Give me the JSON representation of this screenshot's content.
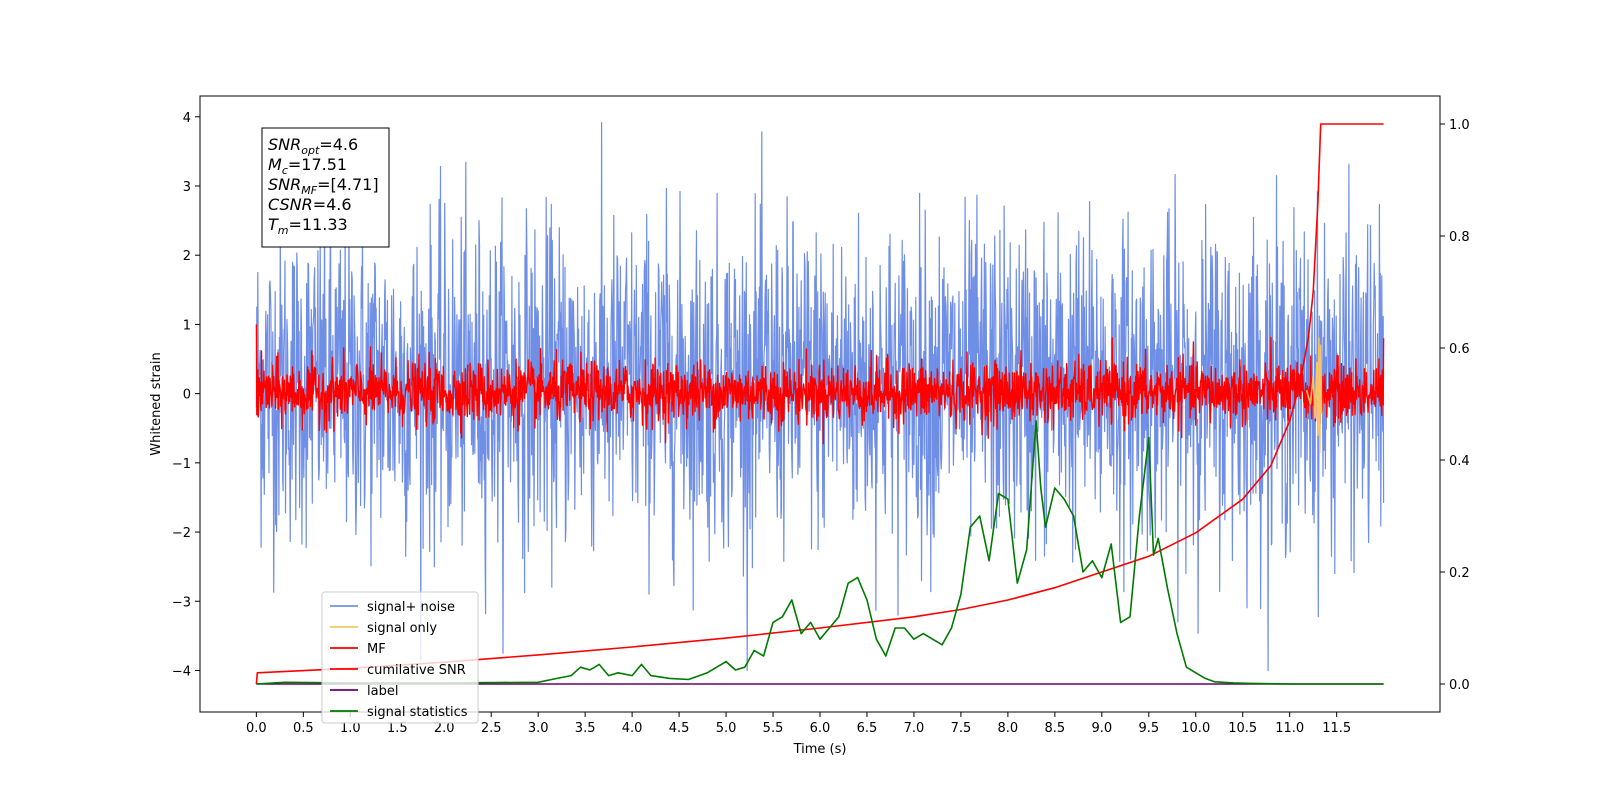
{
  "chart_data": {
    "type": "line",
    "title": "",
    "xlabel": "Time (s)",
    "ylabel": "Whitened strain",
    "xlim": [
      -0.6,
      12.6
    ],
    "ylim": [
      -4.6,
      4.3
    ],
    "y2lim": [
      -0.05,
      1.05
    ],
    "grid": false,
    "legend_position": "bottom-left",
    "x_ticks": [
      "0.0",
      "0.5",
      "1.0",
      "1.5",
      "2.0",
      "2.5",
      "3.0",
      "3.5",
      "4.0",
      "4.5",
      "5.0",
      "5.5",
      "6.0",
      "6.5",
      "7.0",
      "7.5",
      "8.0",
      "8.5",
      "9.0",
      "9.5",
      "10.0",
      "10.5",
      "11.0",
      "11.5"
    ],
    "y_ticks": [
      "4",
      "3",
      "2",
      "1",
      "0",
      "−1",
      "−2",
      "−3",
      "−4"
    ],
    "y2_ticks": [
      "1.0",
      "0.8",
      "0.6",
      "0.4",
      "0.2",
      "0.0"
    ],
    "annotation": {
      "lines": [
        {
          "sym": "SNR",
          "sub": "opt",
          "value": "=4.6"
        },
        {
          "sym": "M",
          "sub": "c",
          "value": "=17.51"
        },
        {
          "sym": "SNR",
          "sub": "MF",
          "value": "=[4.71]"
        },
        {
          "sym": "CSNR",
          "sub": "",
          "value": "=4.6"
        },
        {
          "sym": "T",
          "sub": "m",
          "value": "=11.33"
        }
      ]
    },
    "legend": [
      {
        "label": "signal+ noise",
        "color": "#6f8ee6"
      },
      {
        "label": "signal only",
        "color": "#f6c46a"
      },
      {
        "label": "MF",
        "color": "#ff0000"
      },
      {
        "label": "cumilative SNR",
        "color": "#ff0000"
      },
      {
        "label": "label",
        "color": "#6b006b"
      },
      {
        "label": "signal statistics",
        "color": "#007a00"
      }
    ],
    "series": [
      {
        "name": "signal+ noise",
        "axis": "left",
        "color": "#6f8ee6",
        "x_range": [
          0,
          12.0
        ],
        "mean": 0.15,
        "std": 1.15,
        "clip": [
          -4.0,
          3.95
        ]
      },
      {
        "name": "MF",
        "axis": "left",
        "color": "#ff0000",
        "x_range": [
          0,
          12.0
        ],
        "mean": 0.02,
        "std": 0.22,
        "start_value": 1.0,
        "end_value": 0.8
      },
      {
        "name": "signal only",
        "axis": "left",
        "color": "#f6c46a",
        "x": [
          11.18,
          11.22,
          11.25,
          11.27,
          11.29,
          11.3,
          11.31,
          11.32,
          11.33,
          11.34
        ],
        "y": [
          0.05,
          -0.15,
          0.25,
          -0.35,
          0.45,
          -0.6,
          0.8,
          -0.85,
          0.7,
          -0.3
        ]
      },
      {
        "name": "cumilative SNR",
        "axis": "right",
        "color": "#ff0000",
        "x": [
          0,
          0.01,
          1,
          2,
          3,
          4,
          5,
          6,
          7,
          7.5,
          8,
          8.5,
          9,
          9.5,
          10,
          10.5,
          10.8,
          11,
          11.1,
          11.2,
          11.25,
          11.3,
          11.33,
          11.5,
          12
        ],
        "y": [
          0.0,
          0.02,
          0.028,
          0.039,
          0.052,
          0.066,
          0.082,
          0.1,
          0.12,
          0.133,
          0.15,
          0.172,
          0.2,
          0.228,
          0.27,
          0.33,
          0.39,
          0.47,
          0.53,
          0.62,
          0.7,
          0.86,
          1.0,
          1.0,
          1.0
        ]
      },
      {
        "name": "label",
        "axis": "right",
        "color": "#6b006b",
        "x": [
          0,
          11.33,
          11.33,
          12
        ],
        "y": [
          0,
          0,
          0,
          0
        ]
      },
      {
        "name": "signal statistics",
        "axis": "right",
        "color": "#007a00",
        "x": [
          0,
          0.3,
          1,
          2,
          3,
          3.2,
          3.35,
          3.45,
          3.55,
          3.65,
          3.75,
          3.85,
          4,
          4.1,
          4.2,
          4.4,
          4.6,
          4.8,
          5,
          5.1,
          5.2,
          5.3,
          5.4,
          5.5,
          5.6,
          5.7,
          5.8,
          5.9,
          6,
          6.1,
          6.2,
          6.3,
          6.4,
          6.5,
          6.6,
          6.7,
          6.8,
          6.9,
          7,
          7.1,
          7.2,
          7.3,
          7.4,
          7.5,
          7.6,
          7.7,
          7.8,
          7.9,
          8,
          8.1,
          8.2,
          8.3,
          8.35,
          8.4,
          8.5,
          8.6,
          8.7,
          8.8,
          8.9,
          9,
          9.1,
          9.2,
          9.3,
          9.4,
          9.5,
          9.55,
          9.6,
          9.7,
          9.8,
          9.9,
          10,
          10.1,
          10.2,
          10.4,
          10.6,
          11,
          12
        ],
        "y": [
          0,
          0.003,
          0.002,
          0.002,
          0.003,
          0.01,
          0.015,
          0.03,
          0.025,
          0.035,
          0.015,
          0.02,
          0.015,
          0.035,
          0.015,
          0.01,
          0.008,
          0.02,
          0.04,
          0.025,
          0.03,
          0.06,
          0.05,
          0.11,
          0.12,
          0.15,
          0.09,
          0.11,
          0.08,
          0.1,
          0.12,
          0.18,
          0.19,
          0.15,
          0.08,
          0.05,
          0.1,
          0.1,
          0.08,
          0.09,
          0.08,
          0.07,
          0.1,
          0.16,
          0.28,
          0.3,
          0.22,
          0.34,
          0.33,
          0.18,
          0.24,
          0.47,
          0.35,
          0.28,
          0.35,
          0.33,
          0.3,
          0.2,
          0.22,
          0.19,
          0.25,
          0.11,
          0.12,
          0.3,
          0.44,
          0.23,
          0.26,
          0.17,
          0.09,
          0.03,
          0.02,
          0.01,
          0.004,
          0.002,
          0.001,
          0,
          0
        ]
      }
    ]
  }
}
